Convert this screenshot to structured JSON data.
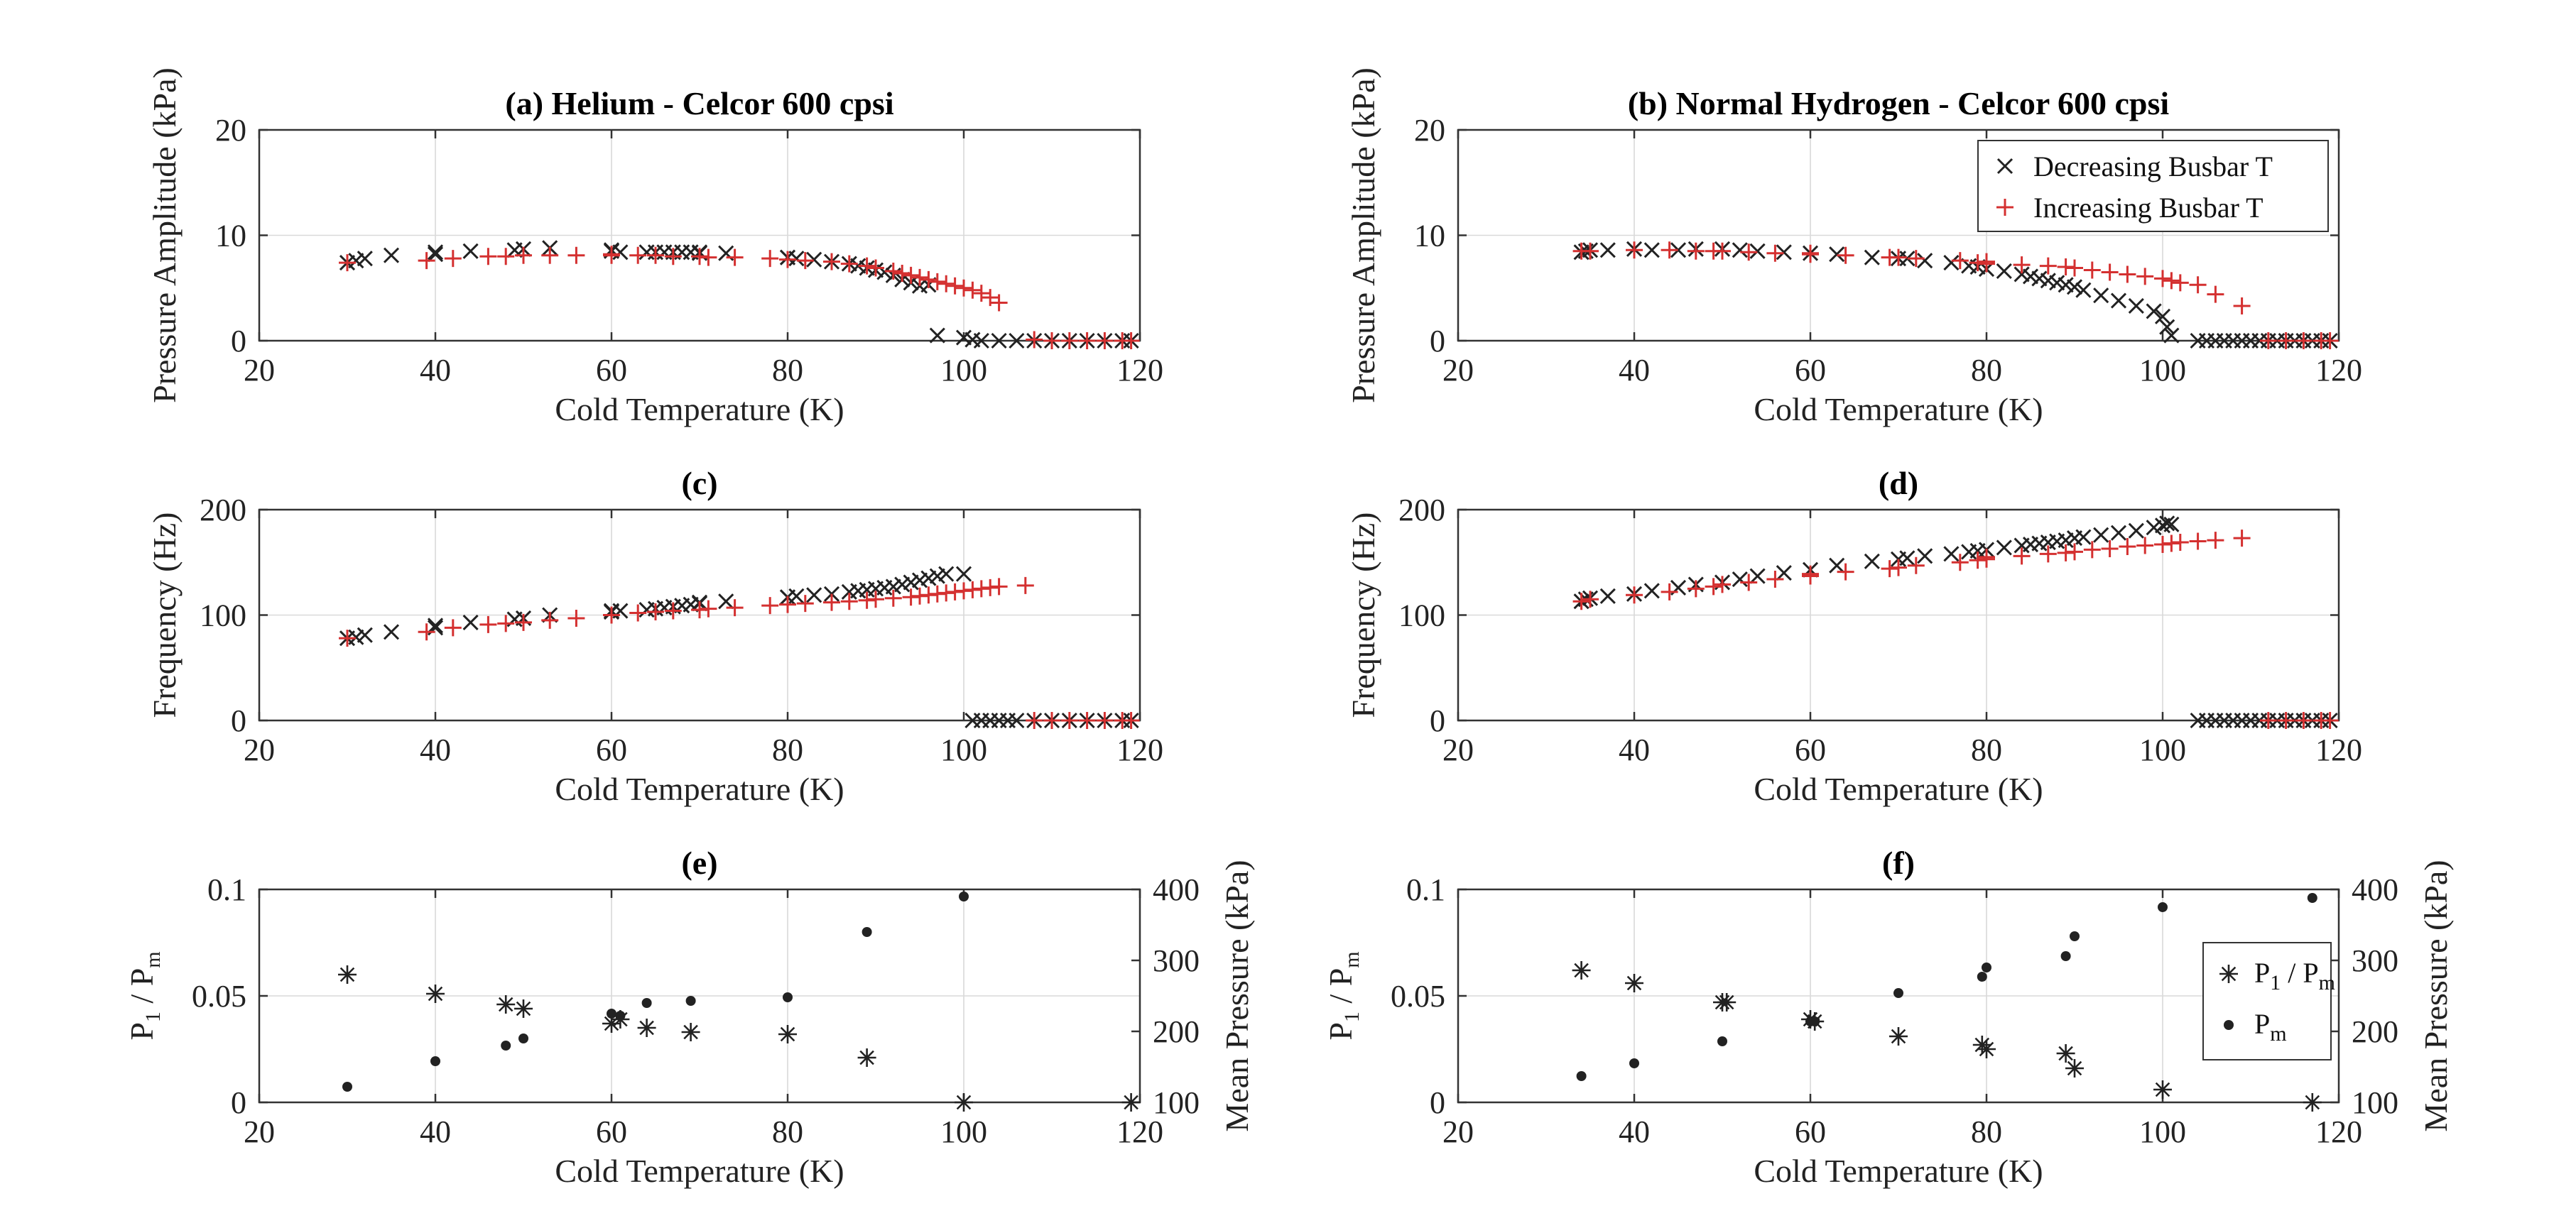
{
  "chart_data": [
    {
      "panel_id": "a",
      "type": "scatter",
      "title": "(a) Helium - Celcor 600 cpsi",
      "xlabel": "Cold Temperature (K)",
      "ylabel": "Pressure Amplitude (kPa)",
      "xlim": [
        20,
        120
      ],
      "ylim": [
        0,
        20
      ],
      "xticks": [
        20,
        40,
        60,
        80,
        100,
        120
      ],
      "yticks": [
        0,
        10,
        20
      ],
      "grid": true,
      "legend": "none",
      "series": [
        {
          "name": "Decreasing Busbar T",
          "marker": "x",
          "color": "#222222",
          "x": [
            30,
            31,
            32,
            35,
            40,
            40,
            44,
            49,
            50,
            53,
            60,
            60,
            61,
            64,
            65,
            66,
            67,
            68,
            69,
            70,
            70,
            73,
            80,
            80,
            81,
            83,
            85,
            87,
            88,
            89,
            90,
            91,
            92,
            93,
            94,
            95,
            96,
            97,
            100,
            101,
            102,
            104,
            106,
            108,
            110,
            112,
            114,
            116,
            118,
            119
          ],
          "y": [
            7.4,
            7.6,
            7.8,
            8.1,
            8.2,
            8.4,
            8.5,
            8.6,
            8.7,
            8.8,
            8.6,
            8.5,
            8.4,
            8.4,
            8.4,
            8.4,
            8.4,
            8.4,
            8.4,
            8.3,
            8.4,
            8.3,
            7.9,
            7.9,
            7.8,
            7.7,
            7.5,
            7.3,
            7.1,
            6.9,
            6.7,
            6.5,
            6.2,
            5.8,
            5.5,
            5.2,
            5.3,
            0.5,
            0.3,
            0.1,
            0,
            0,
            0,
            0,
            0,
            0,
            0,
            0,
            0,
            0
          ]
        },
        {
          "name": "Increasing Busbar T",
          "marker": "+",
          "color": "#d43030",
          "x": [
            30,
            39,
            42,
            46,
            48,
            50,
            53,
            56,
            60,
            60,
            63,
            65,
            67,
            70,
            71,
            74,
            78,
            80,
            82,
            85,
            87,
            89,
            90,
            92,
            93,
            94,
            95,
            96,
            97,
            98,
            99,
            100,
            101,
            102,
            103,
            104,
            108,
            110,
            112,
            114,
            116,
            118,
            119
          ],
          "y": [
            7.4,
            7.6,
            7.8,
            8.0,
            8.0,
            8.1,
            8.1,
            8.1,
            8.2,
            8.1,
            8.1,
            8.1,
            8.0,
            8.0,
            7.9,
            7.9,
            7.8,
            7.7,
            7.6,
            7.5,
            7.3,
            7.1,
            6.9,
            6.6,
            6.4,
            6.2,
            6.0,
            5.8,
            5.6,
            5.4,
            5.2,
            5.0,
            4.8,
            4.5,
            4.1,
            3.6,
            0.1,
            0,
            0,
            0,
            0,
            0,
            0
          ]
        }
      ]
    },
    {
      "panel_id": "b",
      "type": "scatter",
      "title": "(b) Normal Hydrogen - Celcor 600 cpsi",
      "xlabel": "Cold Temperature (K)",
      "ylabel": "Pressure Amplitude (kPa)",
      "xlim": [
        20,
        120
      ],
      "ylim": [
        0,
        20
      ],
      "xticks": [
        20,
        40,
        60,
        80,
        100,
        120
      ],
      "yticks": [
        0,
        10,
        20
      ],
      "grid": true,
      "legend": "top-right",
      "series": [
        {
          "name": "Decreasing Busbar T",
          "marker": "x",
          "color": "#222222",
          "x": [
            34,
            34.5,
            35,
            37,
            40,
            42,
            45,
            47,
            50,
            52,
            54,
            57,
            60,
            63,
            67,
            70,
            71,
            73,
            76,
            78,
            79,
            80,
            82,
            84,
            85,
            86,
            87,
            88,
            89,
            90,
            91,
            93,
            95,
            97,
            99,
            100,
            100.5,
            101,
            104,
            105,
            106,
            107,
            108,
            109,
            110,
            111,
            112,
            113,
            114,
            115,
            116,
            117,
            118,
            119
          ],
          "y": [
            8.4,
            8.5,
            8.6,
            8.6,
            8.7,
            8.6,
            8.6,
            8.7,
            8.7,
            8.6,
            8.5,
            8.4,
            8.3,
            8.2,
            7.9,
            7.8,
            7.8,
            7.6,
            7.4,
            7.1,
            7.0,
            6.8,
            6.6,
            6.3,
            6.1,
            5.9,
            5.7,
            5.5,
            5.3,
            5.1,
            4.8,
            4.3,
            3.8,
            3.3,
            2.8,
            2.3,
            1.3,
            0.5,
            0,
            0,
            0,
            0,
            0,
            0,
            0,
            0,
            0,
            0,
            0,
            0,
            0,
            0,
            0,
            0
          ]
        },
        {
          "name": "Increasing Busbar T",
          "marker": "+",
          "color": "#d43030",
          "x": [
            34,
            35,
            40,
            44,
            47,
            49,
            50,
            53,
            56,
            60,
            60,
            64,
            69,
            70,
            72,
            77,
            79,
            80,
            80,
            84,
            87,
            89,
            90,
            92,
            94,
            96,
            98,
            100,
            101,
            102,
            104,
            106,
            109,
            112,
            114,
            116,
            118,
            119
          ],
          "y": [
            8.5,
            8.5,
            8.6,
            8.6,
            8.5,
            8.5,
            8.5,
            8.4,
            8.3,
            8.2,
            8.3,
            8.1,
            7.9,
            7.9,
            7.8,
            7.6,
            7.4,
            7.5,
            7.3,
            7.2,
            7.1,
            7.0,
            6.9,
            6.7,
            6.5,
            6.3,
            6.1,
            5.9,
            5.7,
            5.5,
            5.3,
            4.4,
            3.3,
            0,
            0,
            0,
            0,
            0
          ]
        }
      ]
    },
    {
      "panel_id": "c",
      "type": "scatter",
      "title": "(c)",
      "xlabel": "Cold Temperature (K)",
      "ylabel": "Frequency (Hz)",
      "xlim": [
        20,
        120
      ],
      "ylim": [
        0,
        200
      ],
      "xticks": [
        20,
        40,
        60,
        80,
        100,
        120
      ],
      "yticks": [
        0,
        100,
        200
      ],
      "grid": true,
      "legend": "none",
      "series": [
        {
          "name": "Decreasing Busbar T",
          "marker": "x",
          "color": "#222222",
          "x": [
            30,
            31,
            32,
            35,
            40,
            40,
            44,
            49,
            50,
            53,
            60,
            60,
            61,
            64,
            65,
            66,
            67,
            68,
            69,
            70,
            70,
            73,
            80,
            80,
            81,
            83,
            85,
            87,
            88,
            89,
            90,
            91,
            92,
            93,
            94,
            95,
            96,
            97,
            98,
            100,
            101,
            102,
            103,
            104,
            105,
            106,
            108,
            110,
            112,
            114,
            116,
            118,
            119
          ],
          "y": [
            78,
            79,
            81,
            84,
            88,
            90,
            93,
            96,
            97,
            100,
            104,
            103,
            104,
            105,
            106,
            107,
            108,
            109,
            110,
            111,
            112,
            113,
            117,
            117,
            118,
            119,
            120,
            122,
            123,
            124,
            125,
            126,
            127,
            129,
            131,
            133,
            135,
            137,
            139,
            139,
            0,
            0,
            0,
            0,
            0,
            0,
            0,
            0,
            0,
            0,
            0,
            0,
            0
          ]
        },
        {
          "name": "Increasing Busbar T",
          "marker": "+",
          "color": "#d43030",
          "x": [
            30,
            39,
            42,
            46,
            48,
            50,
            53,
            56,
            60,
            63,
            65,
            67,
            70,
            71,
            74,
            78,
            80,
            82,
            85,
            87,
            89,
            90,
            92,
            94,
            95,
            96,
            97,
            98,
            99,
            100,
            101,
            102,
            103,
            104,
            107,
            108,
            110,
            112,
            114,
            116,
            118,
            119
          ],
          "y": [
            78,
            84,
            88,
            91,
            92,
            93,
            95,
            97,
            100,
            102,
            103,
            104,
            105,
            106,
            107,
            109,
            110,
            111,
            112,
            113,
            114,
            115,
            116,
            117,
            118,
            119,
            120,
            121,
            122,
            123,
            124,
            125,
            126,
            127,
            128,
            0,
            0,
            0,
            0,
            0,
            0,
            0
          ]
        }
      ]
    },
    {
      "panel_id": "d",
      "type": "scatter",
      "title": "(d)",
      "xlabel": "Cold Temperature (K)",
      "ylabel": "Frequency (Hz)",
      "xlim": [
        20,
        120
      ],
      "ylim": [
        0,
        200
      ],
      "xticks": [
        20,
        40,
        60,
        80,
        100,
        120
      ],
      "yticks": [
        0,
        100,
        200
      ],
      "grid": true,
      "legend": "none",
      "series": [
        {
          "name": "Decreasing Busbar T",
          "marker": "x",
          "color": "#222222",
          "x": [
            34,
            34.5,
            35,
            37,
            40,
            42,
            45,
            47,
            50,
            52,
            54,
            57,
            60,
            63,
            67,
            70,
            71,
            73,
            76,
            78,
            79,
            80,
            82,
            84,
            85,
            86,
            87,
            88,
            89,
            90,
            91,
            93,
            95,
            97,
            99,
            100,
            100.5,
            101,
            104,
            105,
            106,
            107,
            108,
            109,
            110,
            111,
            112,
            113,
            114,
            115,
            116,
            117,
            118,
            119
          ],
          "y": [
            113,
            115,
            116,
            118,
            120,
            123,
            126,
            129,
            131,
            134,
            137,
            140,
            143,
            147,
            151,
            153,
            154,
            156,
            158,
            160,
            161,
            162,
            164,
            166,
            167,
            168,
            169,
            170,
            171,
            173,
            174,
            176,
            178,
            180,
            183,
            185,
            187,
            186,
            0,
            0,
            0,
            0,
            0,
            0,
            0,
            0,
            0,
            0,
            0,
            0,
            0,
            0,
            0,
            0
          ]
        },
        {
          "name": "Increasing Busbar T",
          "marker": "+",
          "color": "#d43030",
          "x": [
            34,
            35,
            40,
            44,
            47,
            49,
            50,
            53,
            56,
            60,
            60,
            64,
            69,
            70,
            72,
            77,
            79,
            80,
            80,
            84,
            87,
            89,
            90,
            92,
            94,
            96,
            98,
            100,
            101,
            102,
            104,
            106,
            109,
            112,
            114,
            116,
            118,
            119
          ],
          "y": [
            113,
            115,
            119,
            122,
            125,
            127,
            129,
            131,
            134,
            137,
            139,
            141,
            144,
            145,
            147,
            150,
            152,
            153,
            155,
            156,
            158,
            159,
            160,
            162,
            163,
            165,
            166,
            167,
            168,
            169,
            170,
            171,
            173,
            0,
            0,
            0,
            0,
            0
          ]
        }
      ]
    },
    {
      "panel_id": "e",
      "type": "scatter",
      "title": "(e)",
      "xlabel": "Cold Temperature (K)",
      "ylabel_left": "P1 / Pm",
      "ylabel_right": "Mean Pressure (kPa)",
      "xlim": [
        20,
        120
      ],
      "ylim_left": [
        0,
        0.1
      ],
      "ylim_right": [
        100,
        400
      ],
      "xticks": [
        20,
        40,
        60,
        80,
        100,
        120
      ],
      "yticks_left": [
        0,
        0.05,
        0.1
      ],
      "yticks_right": [
        100,
        200,
        300,
        400
      ],
      "grid": true,
      "legend": "none",
      "series": [
        {
          "name": "P1 / Pm",
          "marker": "*",
          "axis": "left",
          "color": "#222222",
          "x": [
            30,
            40,
            48,
            50,
            60,
            61,
            64,
            69,
            80,
            89,
            100,
            119
          ],
          "y": [
            0.06,
            0.051,
            0.046,
            0.044,
            0.037,
            0.039,
            0.035,
            0.033,
            0.032,
            0.021,
            0,
            0
          ]
        },
        {
          "name": "Pm",
          "marker": "dot",
          "axis": "right",
          "color": "#222222",
          "x": [
            30,
            40,
            48,
            50,
            60,
            61,
            64,
            69,
            80,
            89,
            100
          ],
          "y": [
            122,
            158,
            180,
            190,
            225,
            222,
            240,
            243,
            248,
            340,
            390
          ]
        }
      ]
    },
    {
      "panel_id": "f",
      "type": "scatter",
      "title": "(f)",
      "xlabel": "Cold Temperature (K)",
      "ylabel_left": "P1 / Pm",
      "ylabel_right": "Mean Pressure (kPa)",
      "xlim": [
        20,
        120
      ],
      "ylim_left": [
        0,
        0.1
      ],
      "ylim_right": [
        100,
        400
      ],
      "xticks": [
        20,
        40,
        60,
        80,
        100,
        120
      ],
      "yticks_left": [
        0,
        0.05,
        0.1
      ],
      "yticks_right": [
        100,
        200,
        300,
        400
      ],
      "grid": true,
      "legend": "right",
      "series": [
        {
          "name": "P1 / Pm",
          "marker": "*",
          "axis": "left",
          "color": "#222222",
          "x": [
            34,
            40,
            50,
            50.5,
            60,
            60.5,
            70,
            79.5,
            80,
            89,
            90,
            100,
            117
          ],
          "y": [
            0.062,
            0.056,
            0.047,
            0.047,
            0.039,
            0.038,
            0.031,
            0.027,
            0.025,
            0.023,
            0.016,
            0.006,
            0
          ]
        },
        {
          "name": "Pm",
          "marker": "dot",
          "axis": "right",
          "color": "#222222",
          "x": [
            34,
            40,
            50,
            60,
            60.5,
            70,
            79.5,
            80,
            89,
            90,
            100,
            117
          ],
          "y": [
            137,
            155,
            186,
            214,
            214,
            254,
            277,
            290,
            306,
            334,
            375,
            388
          ]
        }
      ]
    }
  ],
  "legend_labels": {
    "decreasing": "Decreasing Busbar T",
    "increasing": "Increasing Busbar T",
    "ratio_main": "P",
    "ratio_sub1": "1",
    "ratio_sep": " / P",
    "ratio_sub2": "m",
    "mean_main": "P",
    "mean_sub": "m"
  },
  "axis_text": {
    "ratio_label_main": "P",
    "ratio_label_sub1": "1",
    "ratio_label_sep": " / P",
    "ratio_label_sub2": "m"
  }
}
